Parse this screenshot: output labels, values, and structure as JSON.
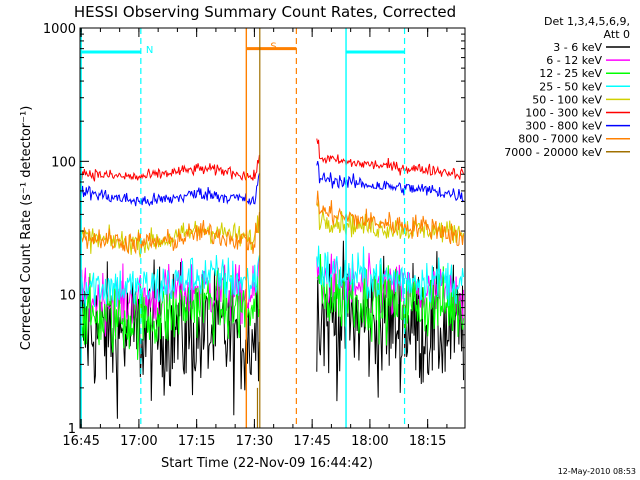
{
  "chart_data": {
    "type": "line",
    "title": "HESSI Observing Summary Count Rates, Corrected",
    "xlabel": "Start Time (22-Nov-09 16:44:42)",
    "ylabel": "Corrected Count Rate (s⁻¹ detector⁻¹)",
    "x_units": "minutes since 16:44:42",
    "xlim": [
      0,
      100
    ],
    "ylim": [
      1,
      1000
    ],
    "y_scale": "log",
    "x_ticks": [
      {
        "value": 0.3,
        "label": "16:45"
      },
      {
        "value": 15.3,
        "label": "17:00"
      },
      {
        "value": 30.3,
        "label": "17:15"
      },
      {
        "value": 45.3,
        "label": "17:30"
      },
      {
        "value": 60.3,
        "label": "17:45"
      },
      {
        "value": 75.3,
        "label": "18:00"
      },
      {
        "value": 90.3,
        "label": "18:15"
      }
    ],
    "y_ticks": [
      {
        "value": 1,
        "label": "1"
      },
      {
        "value": 10,
        "label": "10"
      },
      {
        "value": 100,
        "label": "100"
      },
      {
        "value": 1000,
        "label": "1000"
      }
    ],
    "legend_title": [
      "Det 1,3,4,5,6,9,",
      "Att 0"
    ],
    "legend_position": "right",
    "footer_date": "12-May-2010 08:53",
    "gap": [
      46.6,
      61.5
    ],
    "series": [
      {
        "name": "3 - 6 keV",
        "color": "#000000",
        "pre": [
          5.5,
          5.0,
          5.0,
          5.5,
          5.0,
          5.0,
          5.0
        ],
        "post": [
          7.0,
          6.5,
          6.0,
          6.0,
          5.5,
          5.5
        ],
        "noise": 0.55
      },
      {
        "name": "6 - 12 keV",
        "color": "#ff00ff",
        "pre": [
          9.5,
          9.0,
          9.0,
          10.0,
          11.5,
          10.0,
          9.5
        ],
        "post": [
          12.5,
          11.5,
          11.0,
          10.0,
          10.0,
          9.5
        ],
        "noise": 0.25
      },
      {
        "name": "12 - 25 keV",
        "color": "#00ff00",
        "pre": [
          7.0,
          6.5,
          6.5,
          7.0,
          9.0,
          8.0,
          7.0
        ],
        "post": [
          10.5,
          9.5,
          9.0,
          8.5,
          8.5,
          8.0
        ],
        "noise": 0.3
      },
      {
        "name": "25 - 50 keV",
        "color": "#00ffff",
        "pre": [
          12.0,
          11.5,
          11.0,
          12.0,
          14.0,
          13.0,
          12.0
        ],
        "post": [
          15.5,
          14.0,
          13.5,
          13.0,
          13.0,
          12.5
        ],
        "noise": 0.2
      },
      {
        "name": "50 - 100 keV",
        "color": "#d0d000",
        "pre": [
          27.0,
          25.0,
          24.5,
          26.0,
          31.0,
          28.5,
          25.0
        ],
        "post": [
          38.0,
          34.0,
          32.0,
          31.0,
          30.5,
          29.0
        ],
        "noise": 0.1
      },
      {
        "name": "100 - 300 keV",
        "color": "#ff0000",
        "pre": [
          82.0,
          78.0,
          76.0,
          82.0,
          88.0,
          84.0,
          73.0
        ],
        "post": [
          108.0,
          98.0,
          94.0,
          89.0,
          86.0,
          80.0
        ],
        "noise": 0.05
      },
      {
        "name": "300 - 800 keV",
        "color": "#0000ff",
        "pre": [
          60.0,
          54.0,
          50.0,
          52.0,
          58.0,
          54.0,
          49.0
        ],
        "post": [
          76.0,
          70.0,
          66.0,
          63.0,
          60.0,
          55.0
        ],
        "noise": 0.06
      },
      {
        "name": "800 - 7000 keV",
        "color": "#ff8000",
        "pre": [
          28.0,
          25.5,
          24.5,
          25.0,
          29.5,
          27.0,
          23.5
        ],
        "post": [
          43.0,
          38.0,
          35.0,
          33.0,
          32.0,
          26.0
        ],
        "noise": 0.1
      },
      {
        "name": "7000 - 20000 keV",
        "color": "#a07000",
        "pre": [],
        "post": [],
        "noise": 0
      }
    ],
    "annotations": [
      {
        "label": "N",
        "color": "#00ffff",
        "bar_x": [
          0.3,
          15.8
        ],
        "bar_y": 660,
        "start_line": 0.3,
        "end_line": 15.8
      },
      {
        "label": "S",
        "color": "#ff8000",
        "bar_x": [
          43.2,
          56.2
        ],
        "bar_y": 700,
        "start_line": 43.2,
        "end_line": 56.2
      },
      {
        "label": "",
        "color": "#00ffff",
        "bar_x": [
          69.1,
          84.3
        ],
        "bar_y": 660,
        "start_line": 69.1,
        "end_line": 84.3
      }
    ]
  }
}
